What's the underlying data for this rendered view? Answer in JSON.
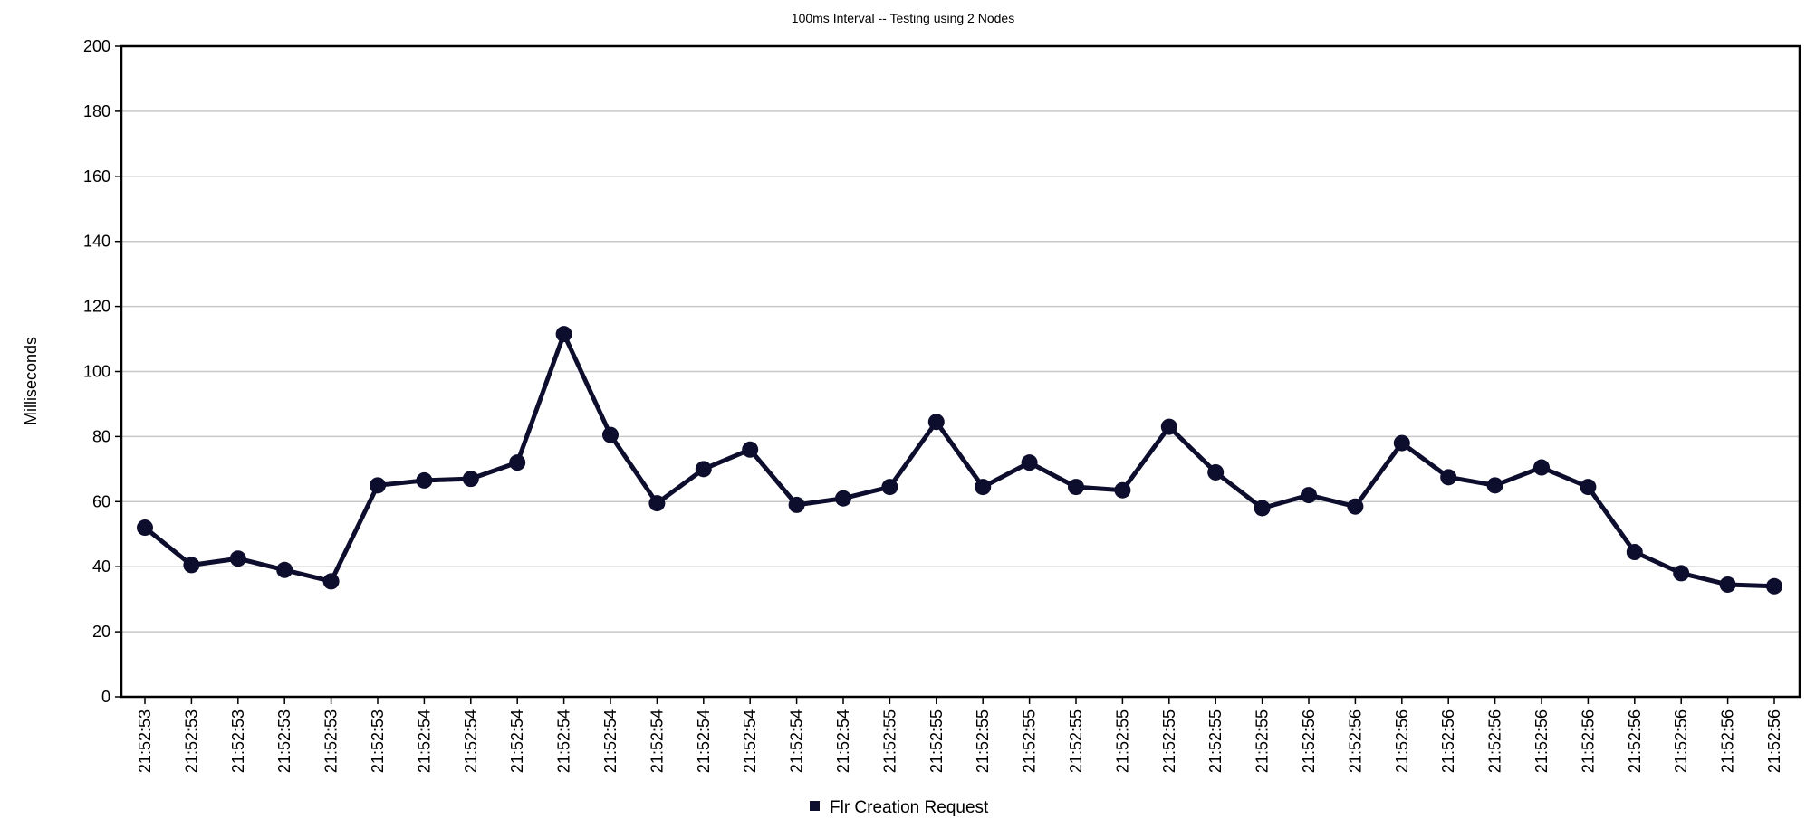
{
  "chart_data": {
    "type": "line",
    "title": "100ms Interval -- Testing using  2 Nodes",
    "xlabel": "",
    "ylabel": "Milliseconds",
    "ylim": [
      0,
      200
    ],
    "yticks": [
      0,
      20,
      40,
      60,
      80,
      100,
      120,
      140,
      160,
      180,
      200
    ],
    "grid": true,
    "legend_position": "bottom",
    "categories": [
      "21:52:53",
      "21:52:53",
      "21:52:53",
      "21:52:53",
      "21:52:53",
      "21:52:53",
      "21:52:54",
      "21:52:54",
      "21:52:54",
      "21:52:54",
      "21:52:54",
      "21:52:54",
      "21:52:54",
      "21:52:54",
      "21:52:54",
      "21:52:54",
      "21:52:55",
      "21:52:55",
      "21:52:55",
      "21:52:55",
      "21:52:55",
      "21:52:55",
      "21:52:55",
      "21:52:55",
      "21:52:55",
      "21:52:56",
      "21:52:56",
      "21:52:56",
      "21:52:56",
      "21:52:56",
      "21:52:56",
      "21:52:56",
      "21:52:56",
      "21:52:56",
      "21:52:56",
      "21:52:56"
    ],
    "series": [
      {
        "name": "Flr Creation Request",
        "color": "#0d0d2e",
        "values": [
          52,
          40.5,
          42.5,
          39,
          35.5,
          65,
          66.5,
          67,
          72,
          111.5,
          80.5,
          59.5,
          70,
          76,
          59,
          61,
          64.5,
          84.5,
          64.5,
          72,
          64.5,
          63.5,
          83,
          69,
          58,
          62,
          58.5,
          78,
          67.5,
          65,
          70.5,
          64.5,
          44.5,
          38,
          34.5,
          34
        ]
      }
    ]
  }
}
